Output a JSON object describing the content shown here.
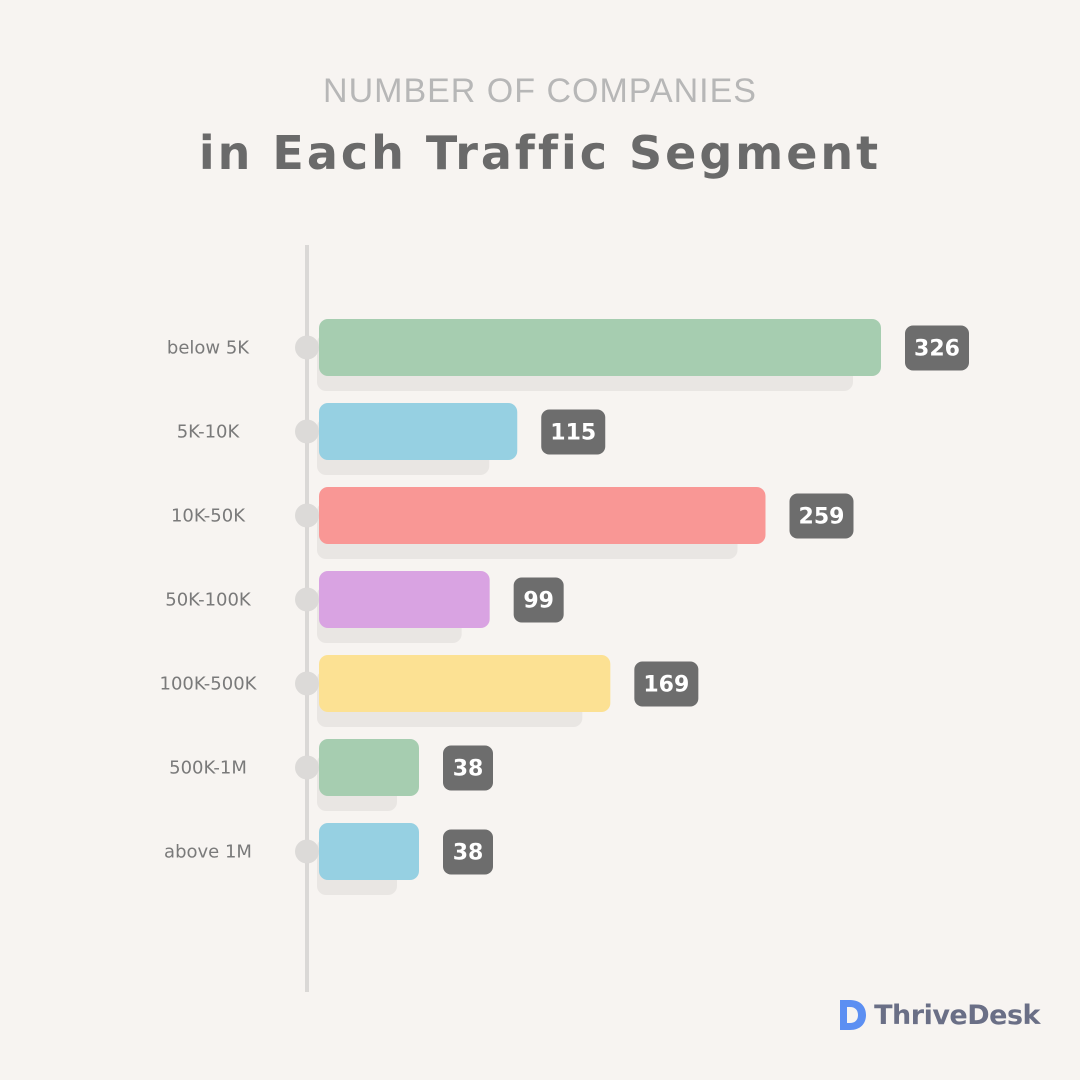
{
  "chart_data": {
    "type": "bar",
    "orientation": "horizontal",
    "title": "NUMBER OF COMPANIES",
    "subtitle": "in Each Traffic Segment",
    "categories": [
      "below 5K",
      "5K-10K",
      "10K-50K",
      "50K-100K",
      "100K-500K",
      "500K-1M",
      "above 1M"
    ],
    "values": [
      326,
      115,
      259,
      99,
      169,
      38,
      38
    ],
    "data_labels": [
      "326",
      "115",
      "259",
      "99",
      "169",
      "38",
      "38"
    ],
    "bar_colors": [
      "#a6cdb0",
      "#96d0e2",
      "#f99795",
      "#d9a3e2",
      "#fce193",
      "#a6cdb0",
      "#96d0e2"
    ],
    "xlabel": "",
    "ylabel": "",
    "grid": false,
    "legend": "none"
  },
  "brand": {
    "name": "ThriveDesk",
    "logo_icon": "thrivedesk-d-icon",
    "logo_color": "#5c8ff2"
  }
}
